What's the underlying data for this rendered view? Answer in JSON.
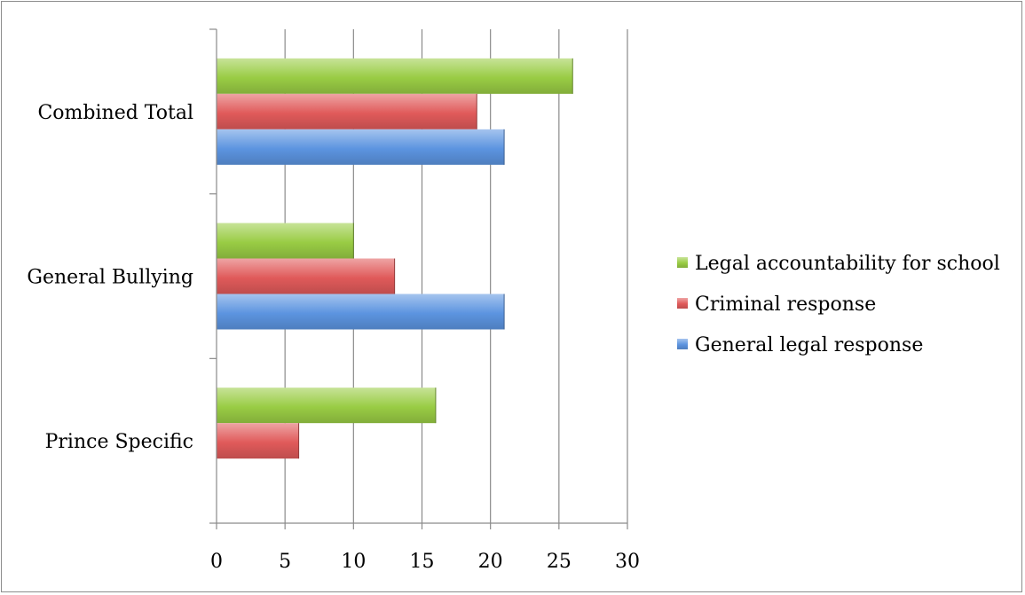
{
  "chart_data": {
    "type": "bar",
    "orientation": "horizontal",
    "categories": [
      "Combined Total",
      "General Bullying",
      "Prince Specific"
    ],
    "series": [
      {
        "name": "Legal accountability for school",
        "color": "#99cc44",
        "values": [
          26,
          10,
          16
        ]
      },
      {
        "name": "Criminal response",
        "color": "#e05a5a",
        "values": [
          19,
          13,
          6
        ]
      },
      {
        "name": "General legal response",
        "color": "#5c94e0",
        "values": [
          21,
          21,
          0
        ]
      }
    ],
    "xlim": [
      0,
      30
    ],
    "xticks": [
      "0",
      "5",
      "10",
      "15",
      "20",
      "25",
      "30"
    ],
    "grid": true,
    "legend": "right"
  }
}
